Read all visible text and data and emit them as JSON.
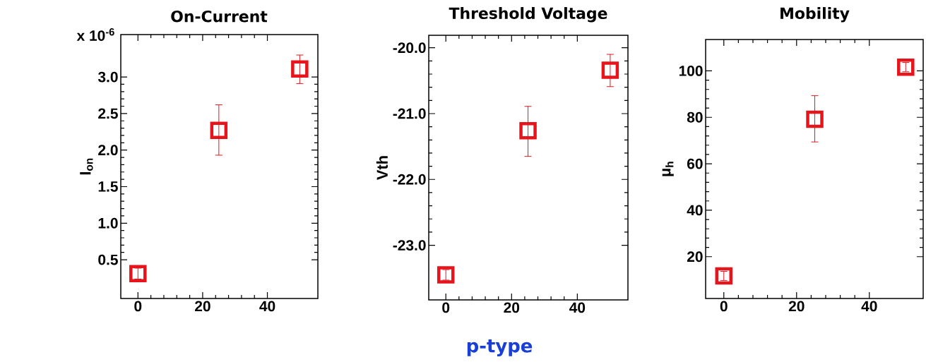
{
  "chart_data": [
    {
      "type": "scatter",
      "title": "On-Current",
      "ylabel": "I$_{on}$",
      "x": [
        0,
        25,
        50
      ],
      "values": [
        0.31,
        2.27,
        3.11
      ],
      "errors": [
        0.075,
        [
          1.93,
          2.62
        ],
        [
          2.91,
          3.3
        ]
      ],
      "color": "#e8141b",
      "marker": "square",
      "xlim": [
        -5.3,
        55.6
      ],
      "xticks": [
        0,
        20,
        40
      ],
      "ylim": [
        -0.03,
        3.58
      ],
      "yticks": [
        {
          "value": 0.5,
          "label": "0.5"
        },
        {
          "value": 1,
          "label": "1.0"
        },
        {
          "value": 1.5,
          "label": "1.5"
        },
        {
          "value": 2,
          "label": "2.0"
        },
        {
          "value": 2.5,
          "label": "2.5"
        },
        {
          "value": 3,
          "label": "3.0"
        }
      ],
      "annotations": [
        "x 10$^{-6}$"
      ]
    },
    {
      "type": "scatter",
      "title": "Threshold Voltage",
      "ylabel": "Vth",
      "x": [
        0,
        25,
        50
      ],
      "values": [
        -23.45,
        -21.26,
        -20.34
      ],
      "errors": [
        0.08,
        [
          -21.65,
          -20.89
        ],
        [
          -20.59,
          -20.1
        ]
      ],
      "color": "#e8141b",
      "marker": "square",
      "xlim": [
        -5.2,
        55.4
      ],
      "xticks": [
        0,
        20,
        40
      ],
      "ylim": [
        -23.83,
        -19.81
      ],
      "yticks": [
        {
          "value": -23,
          "label": "-23.0"
        },
        {
          "value": -22,
          "label": "-22.0"
        },
        {
          "value": -21,
          "label": "-21.0"
        },
        {
          "value": -20,
          "label": "-20.0"
        }
      ],
      "annotations": [
        "p-type"
      ]
    },
    {
      "type": "scatter",
      "title": "Mobility",
      "ylabel": "μ$_{h}$",
      "x": [
        0,
        25,
        50
      ],
      "values": [
        11.7,
        79.2,
        101.6
      ],
      "errors": [
        2,
        [
          69.4,
          89.3
        ],
        2
      ],
      "color": "#e8141b",
      "marker": "square",
      "xlim": [
        -5,
        54.8
      ],
      "xticks": [
        0,
        20,
        40
      ],
      "ylim": [
        2,
        113.5
      ],
      "yticks": [
        20,
        40,
        60,
        80,
        100
      ]
    }
  ]
}
